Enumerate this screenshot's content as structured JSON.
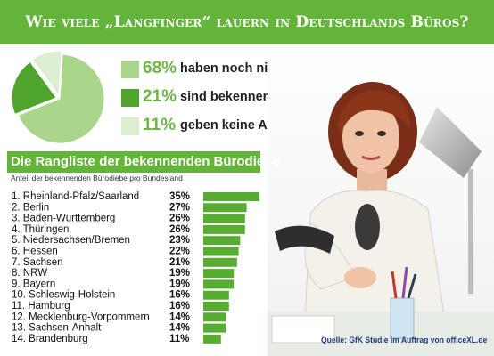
{
  "header": {
    "title": "Wie viele „Langfinger“ lauern in Deutschlands Büros?"
  },
  "colors": {
    "brand_green": "#64b43c",
    "mid_green": "#a9d68a",
    "light_green": "#dcefd0",
    "bar_green": "#56ad31"
  },
  "chart_data": [
    {
      "type": "pie",
      "values": [
        68,
        21,
        11
      ],
      "labels": [
        "haben noch nie geklaut",
        "sind bekennende Bürodiebe",
        "geben keine Antwort"
      ],
      "value_labels": [
        "68%",
        "21%",
        "11%"
      ],
      "colors": [
        "#a9d68a",
        "#4fa52c",
        "#dcefd0"
      ]
    },
    {
      "type": "bar",
      "orientation": "horizontal",
      "title": "Die Rangliste der bekennenden Bürodiebe",
      "subtitle": "Anteil der bekennenden Bürodiebe pro Bundesland",
      "categories": [
        "1. Rheinland-Pfalz/Saarland",
        "2. Berlin",
        "3. Baden-Württemberg",
        "4. Thüringen",
        "5. Niedersachsen/Bremen",
        "6. Hessen",
        "7. Sachsen",
        "8. NRW",
        "9. Bayern",
        "10. Schleswig-Holstein",
        "11. Hamburg",
        "12. Mecklenburg-Vorpommern",
        "13. Sachsen-Anhalt",
        "14. Brandenburg"
      ],
      "values": [
        35,
        27,
        26,
        26,
        23,
        22,
        21,
        19,
        19,
        16,
        16,
        14,
        14,
        11
      ],
      "value_labels": [
        "35%",
        "27%",
        "26%",
        "26%",
        "23%",
        "22%",
        "21%",
        "19%",
        "19%",
        "16%",
        "16%",
        "14%",
        "14%",
        "11%"
      ],
      "xlim": [
        0,
        35
      ],
      "grid": false
    }
  ],
  "source": "Quelle: GfK Studie im Auftrag von officeXL.de"
}
